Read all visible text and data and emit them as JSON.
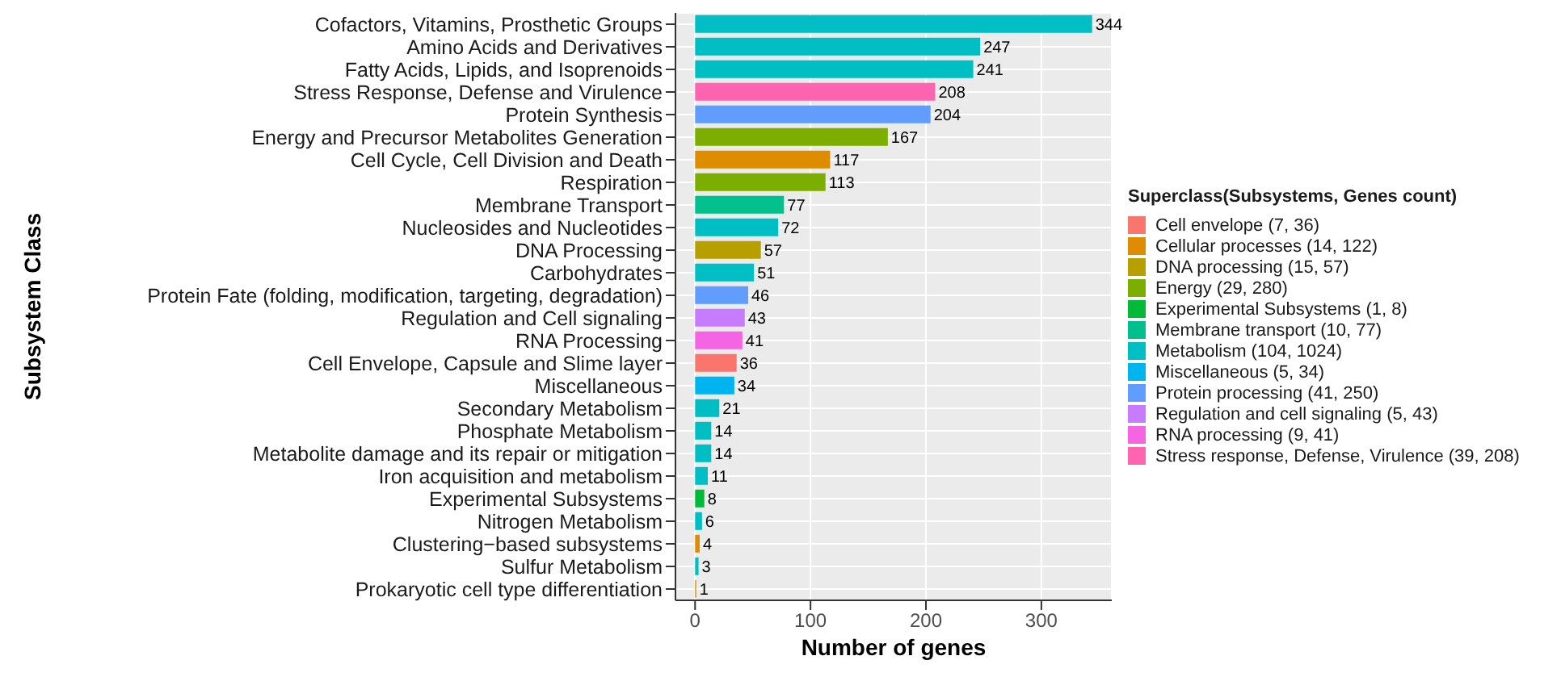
{
  "chart_data": {
    "type": "bar",
    "orientation": "horizontal",
    "stacked": true,
    "xlabel": "Number of genes",
    "ylabel": "Subsystem Class",
    "legend_title": "Superclass(Subsystems, Genes count)",
    "categories": [
      "Cofactors, Vitamins, Prosthetic Groups",
      "Amino Acids and Derivatives",
      "Fatty Acids, Lipids, and Isoprenoids",
      "Stress Response, Defense and Virulence",
      "Protein Synthesis",
      "Energy and Precursor Metabolites Generation",
      "Cell Cycle, Cell Division and Death",
      "Respiration",
      "Membrane Transport",
      "Nucleosides and Nucleotides",
      "DNA Processing",
      "Carbohydrates",
      "Protein Fate (folding, modification, targeting, degradation)",
      "Regulation and Cell signaling",
      "RNA Processing",
      "Cell Envelope, Capsule and Slime layer",
      "Miscellaneous",
      "Secondary Metabolism",
      "Phosphate Metabolism",
      "Metabolite damage and its repair or mitigation",
      "Iron acquisition and metabolism",
      "Experimental Subsystems",
      "Nitrogen Metabolism",
      "Clustering−based subsystems",
      "Sulfur Metabolism",
      "Prokaryotic cell type differentiation"
    ],
    "series": [
      {
        "name": "Cell envelope (7, 36)",
        "color": "#f8766d",
        "values": [
          null,
          null,
          null,
          null,
          null,
          null,
          null,
          null,
          null,
          null,
          null,
          null,
          null,
          null,
          null,
          36,
          null,
          null,
          null,
          null,
          null,
          null,
          null,
          null,
          null,
          null
        ]
      },
      {
        "name": "Cellular processes (14, 122)",
        "color": "#de8c00",
        "values": [
          null,
          null,
          null,
          null,
          null,
          null,
          117,
          null,
          null,
          null,
          null,
          null,
          null,
          null,
          null,
          null,
          null,
          null,
          null,
          null,
          null,
          null,
          null,
          4,
          null,
          1
        ]
      },
      {
        "name": "DNA processing (15, 57)",
        "color": "#b79f00",
        "values": [
          null,
          null,
          null,
          null,
          null,
          null,
          null,
          null,
          null,
          null,
          57,
          null,
          null,
          null,
          null,
          null,
          null,
          null,
          null,
          null,
          null,
          null,
          null,
          null,
          null,
          null
        ]
      },
      {
        "name": "Energy (29, 280)",
        "color": "#7cae00",
        "values": [
          null,
          null,
          null,
          null,
          null,
          167,
          null,
          113,
          null,
          null,
          null,
          null,
          null,
          null,
          null,
          null,
          null,
          null,
          null,
          null,
          null,
          null,
          null,
          null,
          null,
          null
        ]
      },
      {
        "name": "Experimental Subsystems (1, 8)",
        "color": "#00ba38",
        "values": [
          null,
          null,
          null,
          null,
          null,
          null,
          null,
          null,
          null,
          null,
          null,
          null,
          null,
          null,
          null,
          null,
          null,
          null,
          null,
          null,
          null,
          8,
          null,
          null,
          null,
          null
        ]
      },
      {
        "name": "Membrane transport (10, 77)",
        "color": "#00c08b",
        "values": [
          null,
          null,
          null,
          null,
          null,
          null,
          null,
          null,
          77,
          null,
          null,
          null,
          null,
          null,
          null,
          null,
          null,
          null,
          null,
          null,
          null,
          null,
          null,
          null,
          null,
          null
        ]
      },
      {
        "name": "Metabolism (104, 1024)",
        "color": "#00bfc4",
        "values": [
          344,
          247,
          241,
          null,
          null,
          null,
          null,
          null,
          null,
          72,
          null,
          51,
          null,
          null,
          null,
          null,
          null,
          21,
          14,
          14,
          11,
          null,
          6,
          null,
          3,
          null
        ]
      },
      {
        "name": "Miscellaneous (5, 34)",
        "color": "#00b4f0",
        "values": [
          null,
          null,
          null,
          null,
          null,
          null,
          null,
          null,
          null,
          null,
          null,
          null,
          null,
          null,
          null,
          null,
          34,
          null,
          null,
          null,
          null,
          null,
          null,
          null,
          null,
          null
        ]
      },
      {
        "name": "Protein processing (41, 250)",
        "color": "#619cff",
        "values": [
          null,
          null,
          null,
          null,
          204,
          null,
          null,
          null,
          null,
          null,
          null,
          null,
          46,
          null,
          null,
          null,
          null,
          null,
          null,
          null,
          null,
          null,
          null,
          null,
          null,
          null
        ]
      },
      {
        "name": "Regulation and cell signaling (5, 43)",
        "color": "#c77cff",
        "values": [
          null,
          null,
          null,
          null,
          null,
          null,
          null,
          null,
          null,
          null,
          null,
          null,
          null,
          43,
          null,
          null,
          null,
          null,
          null,
          null,
          null,
          null,
          null,
          null,
          null,
          null
        ]
      },
      {
        "name": "RNA processing (9, 41)",
        "color": "#f564e3",
        "values": [
          null,
          null,
          null,
          null,
          null,
          null,
          null,
          null,
          null,
          null,
          null,
          null,
          null,
          null,
          41,
          null,
          null,
          null,
          null,
          null,
          null,
          null,
          null,
          null,
          null,
          null
        ]
      },
      {
        "name": "Stress response, Defense, Virulence (39, 208)",
        "color": "#ff64b0",
        "values": [
          null,
          null,
          null,
          208,
          null,
          null,
          null,
          null,
          null,
          null,
          null,
          null,
          null,
          null,
          null,
          null,
          null,
          null,
          null,
          null,
          null,
          null,
          null,
          null,
          null,
          null
        ]
      }
    ],
    "xlim": [
      -17,
      361
    ],
    "xticks": [
      0,
      100,
      200,
      300
    ],
    "grid": true,
    "data_labels": true,
    "legend": "right"
  }
}
